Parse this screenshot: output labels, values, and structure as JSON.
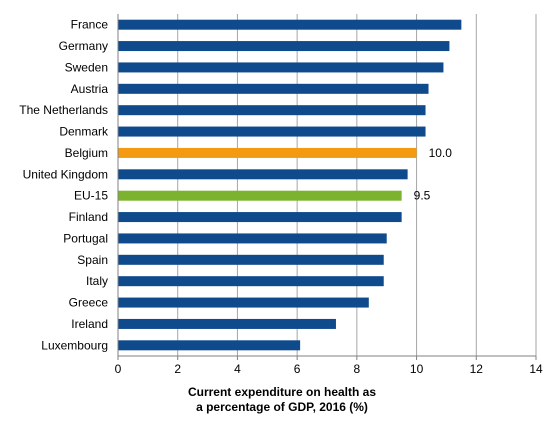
{
  "chart_data": {
    "type": "bar",
    "orientation": "horizontal",
    "categories": [
      "France",
      "Germany",
      "Sweden",
      "Austria",
      "The Netherlands",
      "Denmark",
      "Belgium",
      "United Kingdom",
      "EU-15",
      "Finland",
      "Portugal",
      "Spain",
      "Italy",
      "Greece",
      "Ireland",
      "Luxembourg"
    ],
    "values": [
      11.5,
      11.1,
      10.9,
      10.4,
      10.3,
      10.3,
      10.0,
      9.7,
      9.5,
      9.5,
      9.0,
      8.9,
      8.9,
      8.4,
      7.3,
      6.1
    ],
    "data_labels": {
      "Belgium": "10.0",
      "EU-15": "9.5"
    },
    "xlim": [
      0,
      14
    ],
    "xticks": [
      0,
      2,
      4,
      6,
      8,
      10,
      12,
      14
    ],
    "xlabel": [
      "Current expenditure on health as",
      "a percentage of GDP, 2016 (%)"
    ],
    "grid": "vertical",
    "colors": {
      "default": "#0e4a8c",
      "Belgium": "#f39a12",
      "EU-15": "#7bb32e"
    }
  }
}
